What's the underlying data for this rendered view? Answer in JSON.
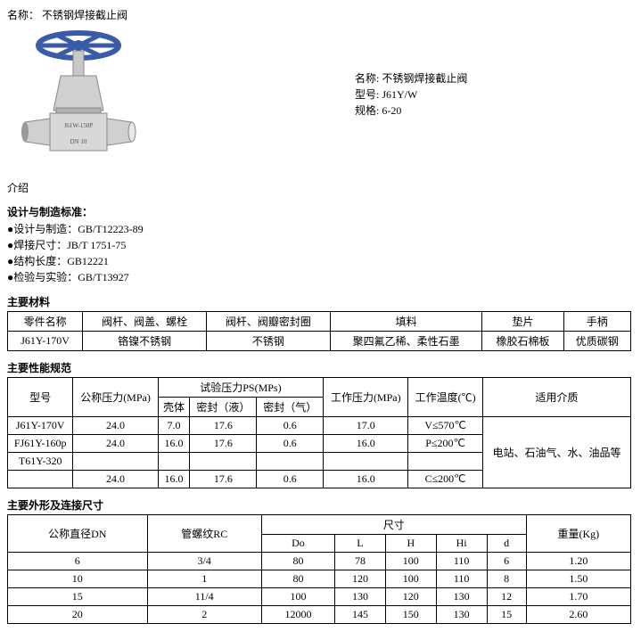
{
  "header": {
    "name_label": "名称：",
    "name_value": "不锈钢焊接截止阀"
  },
  "meta": {
    "name_label": "名称:",
    "name_value": "不锈钢焊接截止阀",
    "model_label": "型号:",
    "model_value": "J61Y/W",
    "spec_label": "规格:",
    "spec_value": "6-20"
  },
  "intro_label": "介绍",
  "section_standards": {
    "title": "设计与制造标准：",
    "lines": [
      "●设计与制造：GB/T12223-89",
      "●焊接尺寸：JB/T 1751-75",
      "●结构长度：GB12221",
      "●检验与实验：GB/T13927"
    ]
  },
  "materials": {
    "title": "主要材料",
    "headers": [
      "零件名称",
      "阀杆、阀盖、螺栓",
      "阀杆、阀瓣密封圈",
      "填料",
      "垫片",
      "手柄"
    ],
    "row": [
      "J61Y-170V",
      "铬镍不锈钢",
      "不锈钢",
      "聚四氟乙稀、柔性石墨",
      "橡胶石棉板",
      "优质碳钢"
    ]
  },
  "performance": {
    "title": "主要性能规范",
    "col_model": "型号",
    "col_nominal": "公称压力(MPa)",
    "col_testps": "试验压力PS(MPs)",
    "col_shell": "壳体",
    "col_seal_liquid": "密封（液）",
    "col_seal_gas": "密封（气）",
    "col_work_pressure": "工作压力(MPa)",
    "col_work_temp": "工作温度(℃)",
    "col_medium": "适用介质",
    "rows": [
      {
        "model": "J61Y-170V",
        "nom": "24.0",
        "shell": "7.0",
        "liq": "17.6",
        "gas": "0.6",
        "wp": "17.0",
        "temp": "V≤570℃"
      },
      {
        "model": "FJ61Y-160p",
        "nom": "24.0",
        "shell": "16.0",
        "liq": "17.6",
        "gas": "0.6",
        "wp": "16.0",
        "temp": "P≤200℃"
      },
      {
        "model": "T61Y-320",
        "nom": "",
        "shell": "",
        "liq": "",
        "gas": "",
        "wp": "",
        "temp": ""
      },
      {
        "model": "",
        "nom": "24.0",
        "shell": "16.0",
        "liq": "17.6",
        "gas": "0.6",
        "wp": "16.0",
        "temp": "C≤200℃"
      }
    ],
    "medium_value": "电站、石油气、水、油品等"
  },
  "dimensions": {
    "title": "主要外形及连接尺寸",
    "col_dn": "公称直径DN",
    "col_thread": "管螺纹RC",
    "col_size": "尺寸",
    "col_do": "Do",
    "col_l": "L",
    "col_h": "H",
    "col_hi": "Hi",
    "col_d": "d",
    "col_weight": "重量(Kg)",
    "rows": [
      {
        "dn": "6",
        "rc": "3/4",
        "do": "80",
        "l": "78",
        "h": "100",
        "hi": "110",
        "d": "6",
        "w": "1.20"
      },
      {
        "dn": "10",
        "rc": "1",
        "do": "80",
        "l": "120",
        "h": "100",
        "hi": "110",
        "d": "8",
        "w": "1.50"
      },
      {
        "dn": "15",
        "rc": "11/4",
        "do": "100",
        "l": "130",
        "h": "120",
        "hi": "130",
        "d": "12",
        "w": "1.70"
      },
      {
        "dn": "20",
        "rc": "2",
        "do": "12000",
        "l": "145",
        "h": "150",
        "hi": "130",
        "d": "15",
        "w": "2.60"
      }
    ]
  },
  "image": {
    "label_text": "J61W-150P",
    "dn_text": "DN 10",
    "handwheel_color": "#3a5ba8",
    "body_color": "#c8c8c8",
    "body_shadow": "#9a9a9a"
  }
}
